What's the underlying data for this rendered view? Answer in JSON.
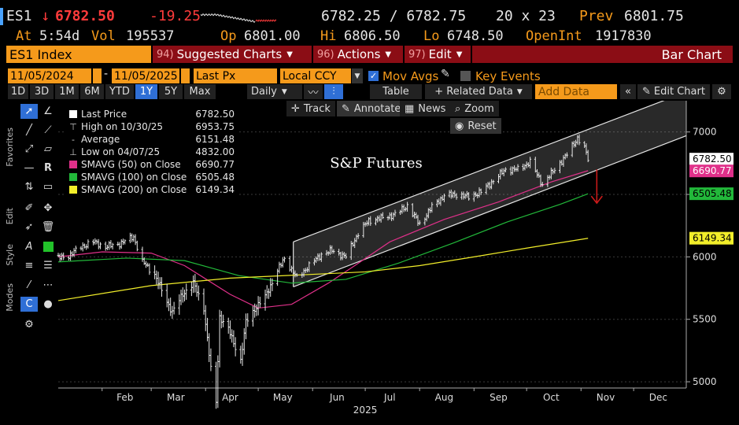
{
  "header": {
    "ticker": "ES1",
    "last_price": "6782.50",
    "change": "-19.25",
    "bid_ask": "6782.25 / 6782.75",
    "size": "20 x 23",
    "prev_label": "Prev",
    "prev_value": "6801.75",
    "time_label": "At",
    "time_value": "5:54d",
    "vol_label": "Vol",
    "vol_value": "195537",
    "op_label": "Op",
    "op_value": "6801.00",
    "hi_label": "Hi",
    "hi_value": "6806.50",
    "lo_label": "Lo",
    "lo_value": "6748.50",
    "oi_label": "OpenInt",
    "oi_value": "1917830"
  },
  "menubar": {
    "security": "ES1 Index",
    "suggested_num": "94)",
    "suggested": "Suggested Charts",
    "actions_num": "96)",
    "actions": "Actions",
    "edit_num": "97)",
    "edit": "Edit",
    "chart_type": "Bar Chart"
  },
  "controls": {
    "start_date": "11/05/2024",
    "end_date": "11/05/2025",
    "field": "Last Px",
    "currency": "Local CCY",
    "mov_avgs": "Mov Avgs",
    "key_events": "Key Events",
    "periods": [
      "1D",
      "3D",
      "1M",
      "6M",
      "YTD",
      "1Y",
      "5Y",
      "Max"
    ],
    "active_period": "1Y",
    "frequency": "Daily",
    "table": "Table",
    "related": "+ Related Data",
    "add_data_placeholder": "Add Data",
    "edit_chart": "Edit Chart"
  },
  "chart_tools": {
    "track": "Track",
    "annotate": "Annotate",
    "news": "News",
    "zoom": "Zoom",
    "reset": "Reset"
  },
  "sidebar": {
    "favorites": "Favorites",
    "edit": "Edit",
    "style": "Style",
    "modes": "Modes"
  },
  "legend": [
    {
      "label": "Last Price",
      "value": "6782.50",
      "color": "#ffffff",
      "kind": "box"
    },
    {
      "label": "High on 10/30/25",
      "value": "6953.75",
      "color": "#cccccc",
      "kind": "high"
    },
    {
      "label": "Average",
      "value": "6151.48",
      "color": "#cccccc",
      "kind": "avg"
    },
    {
      "label": "Low on 04/07/25",
      "value": "4832.00",
      "color": "#cccccc",
      "kind": "low"
    },
    {
      "label": "SMAVG (50)  on Close",
      "value": "6690.77",
      "color": "#e0308a",
      "kind": "box"
    },
    {
      "label": "SMAVG (100)  on Close",
      "value": "6505.48",
      "color": "#22b83a",
      "kind": "box"
    },
    {
      "label": "SMAVG (200)  on Close",
      "value": "6149.34",
      "color": "#f2ee2a",
      "kind": "box"
    }
  ],
  "chart_data": {
    "type": "line",
    "title": "S&P Futures",
    "x_labels": [
      "Feb",
      "Mar",
      "Apr",
      "May",
      "Jun",
      "Jul",
      "Aug",
      "Sep",
      "Oct",
      "Nov",
      "Dec"
    ],
    "x_year": "2025",
    "y_ticks": [
      5000,
      5500,
      6000,
      6500,
      7000
    ],
    "ylim": [
      4950,
      7250
    ],
    "x_range": [
      "2025-01-07",
      "2025-12-31"
    ],
    "price_series": {
      "name": "Last Price",
      "points": [
        [
          "2025-01-07",
          5990
        ],
        [
          "2025-01-13",
          6010
        ],
        [
          "2025-01-20",
          6080
        ],
        [
          "2025-01-27",
          6120
        ],
        [
          "2025-02-03",
          6080
        ],
        [
          "2025-02-10",
          6100
        ],
        [
          "2025-02-19",
          6160
        ],
        [
          "2025-02-24",
          5960
        ],
        [
          "2025-03-03",
          5860
        ],
        [
          "2025-03-10",
          5640
        ],
        [
          "2025-03-13",
          5560
        ],
        [
          "2025-03-19",
          5700
        ],
        [
          "2025-03-25",
          5790
        ],
        [
          "2025-03-31",
          5590
        ],
        [
          "2025-04-04",
          5100
        ],
        [
          "2025-04-07",
          4832
        ],
        [
          "2025-04-09",
          5520
        ],
        [
          "2025-04-14",
          5420
        ],
        [
          "2025-04-21",
          5170
        ],
        [
          "2025-04-24",
          5480
        ],
        [
          "2025-04-30",
          5600
        ],
        [
          "2025-05-05",
          5680
        ],
        [
          "2025-05-12",
          5890
        ],
        [
          "2025-05-16",
          5990
        ],
        [
          "2025-05-23",
          5830
        ],
        [
          "2025-05-30",
          5930
        ],
        [
          "2025-06-06",
          6020
        ],
        [
          "2025-06-12",
          6050
        ],
        [
          "2025-06-20",
          6000
        ],
        [
          "2025-06-27",
          6190
        ],
        [
          "2025-07-03",
          6290
        ],
        [
          "2025-07-10",
          6310
        ],
        [
          "2025-07-18",
          6340
        ],
        [
          "2025-07-25",
          6410
        ],
        [
          "2025-08-01",
          6260
        ],
        [
          "2025-08-08",
          6400
        ],
        [
          "2025-08-15",
          6490
        ],
        [
          "2025-08-22",
          6500
        ],
        [
          "2025-08-29",
          6480
        ],
        [
          "2025-09-05",
          6520
        ],
        [
          "2025-09-12",
          6610
        ],
        [
          "2025-09-19",
          6700
        ],
        [
          "2025-09-26",
          6700
        ],
        [
          "2025-10-03",
          6760
        ],
        [
          "2025-10-10",
          6580
        ],
        [
          "2025-10-17",
          6700
        ],
        [
          "2025-10-24",
          6820
        ],
        [
          "2025-10-30",
          6953
        ],
        [
          "2025-11-03",
          6870
        ],
        [
          "2025-11-05",
          6782
        ]
      ]
    },
    "series": [
      {
        "name": "SMAVG (50)",
        "color": "#e0308a",
        "points": [
          [
            "2025-01-07",
            6000
          ],
          [
            "2025-02-01",
            6040
          ],
          [
            "2025-03-01",
            6030
          ],
          [
            "2025-03-20",
            5930
          ],
          [
            "2025-04-15",
            5700
          ],
          [
            "2025-05-01",
            5590
          ],
          [
            "2025-05-20",
            5620
          ],
          [
            "2025-06-10",
            5790
          ],
          [
            "2025-06-25",
            5930
          ],
          [
            "2025-07-15",
            6120
          ],
          [
            "2025-08-15",
            6300
          ],
          [
            "2025-09-15",
            6440
          ],
          [
            "2025-10-15",
            6600
          ],
          [
            "2025-11-05",
            6690
          ]
        ]
      },
      {
        "name": "SMAVG (100)",
        "color": "#22b83a",
        "points": [
          [
            "2025-01-07",
            5960
          ],
          [
            "2025-02-15",
            5990
          ],
          [
            "2025-03-20",
            5970
          ],
          [
            "2025-04-20",
            5850
          ],
          [
            "2025-05-20",
            5790
          ],
          [
            "2025-06-20",
            5820
          ],
          [
            "2025-07-20",
            5950
          ],
          [
            "2025-08-20",
            6110
          ],
          [
            "2025-09-20",
            6280
          ],
          [
            "2025-10-20",
            6420
          ],
          [
            "2025-11-05",
            6505
          ]
        ]
      },
      {
        "name": "SMAVG (200)",
        "color": "#f2ee2a",
        "points": [
          [
            "2025-01-07",
            5650
          ],
          [
            "2025-03-01",
            5770
          ],
          [
            "2025-04-15",
            5830
          ],
          [
            "2025-06-01",
            5860
          ],
          [
            "2025-07-01",
            5880
          ],
          [
            "2025-08-01",
            5930
          ],
          [
            "2025-09-01",
            6000
          ],
          [
            "2025-10-01",
            6070
          ],
          [
            "2025-11-05",
            6149
          ]
        ]
      }
    ],
    "channel": {
      "upper": [
        [
          "2025-05-21",
          6120
        ],
        [
          "2025-12-31",
          7320
        ]
      ],
      "lower": [
        [
          "2025-05-21",
          5760
        ],
        [
          "2025-12-31",
          6970
        ]
      ]
    },
    "price_tags": [
      {
        "value": "6782.50",
        "y": 6782.5,
        "bg": "#ffffff",
        "fg": "#000000"
      },
      {
        "value": "6690.77",
        "y": 6690.77,
        "bg": "#e0308a",
        "fg": "#ffffff"
      },
      {
        "value": "6505.48",
        "y": 6505.48,
        "bg": "#22b83a",
        "fg": "#000000"
      },
      {
        "value": "6149.34",
        "y": 6149.34,
        "bg": "#f2ee2a",
        "fg": "#000000"
      }
    ],
    "annotation_arrow_color": "#d11b1b"
  }
}
